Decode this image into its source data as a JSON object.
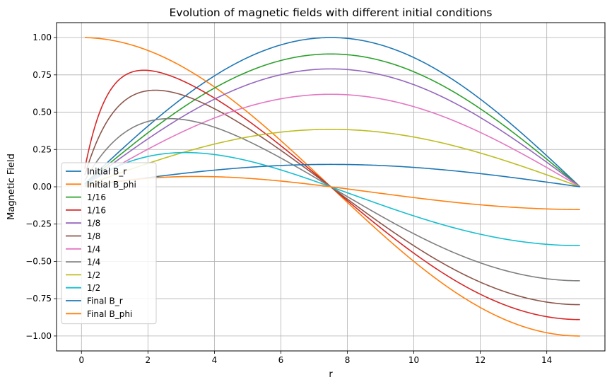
{
  "chart_data": {
    "type": "line",
    "title": "Evolution of magnetic fields with different initial conditions",
    "xlabel": "r",
    "ylabel": "Magnetic Field",
    "xlim": [
      -0.75,
      15.75
    ],
    "ylim": [
      -1.1,
      1.1
    ],
    "xticks": [
      0,
      2,
      4,
      6,
      8,
      10,
      12,
      14
    ],
    "xtick_labels": [
      "0",
      "2",
      "4",
      "6",
      "8",
      "10",
      "12",
      "14"
    ],
    "yticks": [
      -1.0,
      -0.75,
      -0.5,
      -0.25,
      0.0,
      0.25,
      0.5,
      0.75,
      1.0
    ],
    "ytick_labels": [
      "−1.00",
      "−0.75",
      "−0.50",
      "−0.25",
      "0.00",
      "0.25",
      "0.50",
      "0.75",
      "1.00"
    ],
    "grid": true,
    "legend_position": "lower-left",
    "x_range": [
      0.1,
      15
    ],
    "series": [
      {
        "name": "Initial B_r",
        "color": "#1f77b4",
        "form": "br",
        "amp": 1.0
      },
      {
        "name": "Initial B_phi",
        "color": "#ff7f0e",
        "form": "bphi_init",
        "amp": 1.0
      },
      {
        "name": "1/16",
        "color": "#2ca02c",
        "form": "br",
        "amp": 0.89
      },
      {
        "name": "1/16",
        "color": "#d62728",
        "form": "bphi",
        "amp": 0.89,
        "scale": 0.6
      },
      {
        "name": "1/8",
        "color": "#9467bd",
        "form": "br",
        "amp": 0.79
      },
      {
        "name": "1/8",
        "color": "#8c564b",
        "form": "bphi",
        "amp": 0.79,
        "scale": 0.85
      },
      {
        "name": "1/4",
        "color": "#e377c2",
        "form": "br",
        "amp": 0.62
      },
      {
        "name": "1/4",
        "color": "#7f7f7f",
        "form": "bphi",
        "amp": 0.63,
        "scale": 1.3
      },
      {
        "name": "1/2",
        "color": "#bcbd22",
        "form": "br",
        "amp": 0.385
      },
      {
        "name": "1/2",
        "color": "#17becf",
        "form": "bphi",
        "amp": 0.395,
        "scale": 2.2
      },
      {
        "name": "Final B_r",
        "color": "#1f77b4",
        "form": "br",
        "amp": 0.15
      },
      {
        "name": "Final B_phi",
        "color": "#ff7f0e",
        "form": "bphi",
        "amp": 0.155,
        "scale": 3.5
      }
    ]
  }
}
